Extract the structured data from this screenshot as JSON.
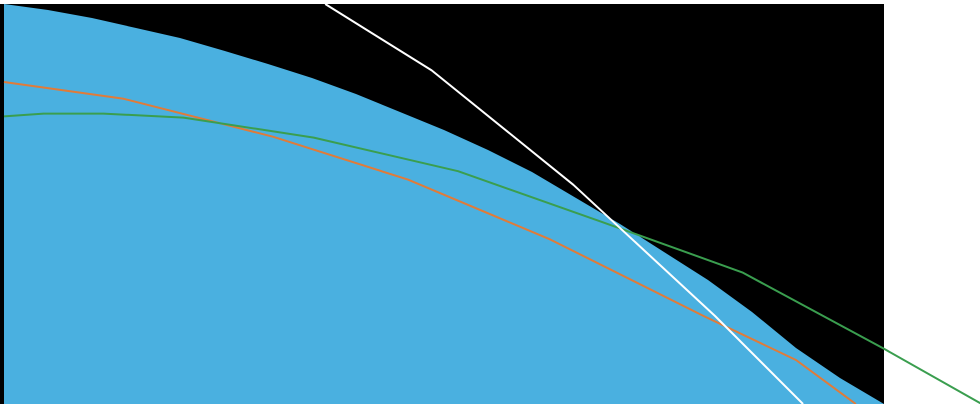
{
  "colors": {
    "page_background": "#ffffff",
    "plot_background": "#000000",
    "region_fill": "#4ab0e0",
    "series_orange": "#e07b39",
    "series_green": "#3a9e4f",
    "series_white": "#ffffff"
  },
  "chart_data": {
    "type": "area",
    "title": "",
    "xlabel": "",
    "ylabel": "",
    "xlim": [
      0,
      100
    ],
    "ylim": [
      0,
      100
    ],
    "grid": false,
    "legend": "none",
    "area": {
      "color": "#4ab0e0",
      "x": [
        0,
        5,
        10,
        15,
        20,
        25,
        30,
        35,
        40,
        45,
        50,
        55,
        60,
        65,
        70,
        75,
        80,
        85,
        90,
        95,
        100
      ],
      "y": [
        100,
        98.5,
        96.5,
        94,
        91.5,
        88.3,
        85,
        81.5,
        77.5,
        73,
        68.5,
        63.5,
        58,
        51.5,
        45,
        38,
        31,
        23,
        14,
        6.5,
        0
      ]
    },
    "series": [
      {
        "color": "#e07b39",
        "x": [
          0,
          13.6,
          30.6,
          45.9,
          62.1,
          79.5,
          90,
          96.8
        ],
        "y": [
          80.5,
          76.3,
          66.8,
          56.1,
          41.1,
          22.0,
          11.0,
          0
        ]
      },
      {
        "color": "#3a9e4f",
        "x": [
          0,
          4.5,
          11.3,
          20.4,
          35.2,
          51.6,
          68.1,
          83.9,
          100,
          111.1
        ],
        "y": [
          71.9,
          72.6,
          72.6,
          71.6,
          66.6,
          58.2,
          45.4,
          32.9,
          13.8,
          0
        ]
      },
      {
        "color": "#ffffff",
        "x": [
          36.5,
          48.6,
          64.7,
          80.8,
          90.8
        ],
        "y": [
          100,
          83.4,
          54.8,
          22.0,
          0
        ]
      }
    ]
  }
}
